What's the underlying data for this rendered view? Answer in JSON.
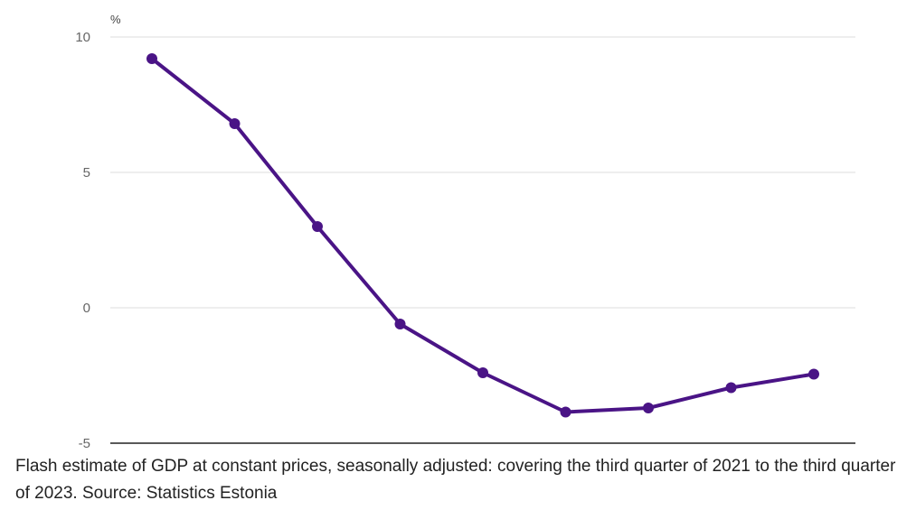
{
  "chart_data": {
    "type": "line",
    "unit_label": "%",
    "ylim": [
      -5,
      10
    ],
    "y_ticks": [
      10,
      5,
      0,
      -5
    ],
    "grid": true,
    "x": [
      1,
      2,
      3,
      4,
      5,
      6,
      7,
      8,
      9
    ],
    "series": [
      {
        "values": [
          9.2,
          6.8,
          3.0,
          -0.6,
          -2.4,
          -3.85,
          -3.7,
          -2.95,
          -2.45
        ],
        "color": "#4a1486"
      }
    ]
  },
  "caption": "Flash estimate of GDP at constant prices, seasonally adjusted: covering the third quarter of 2021 to the third quarter of 2023. Source: Statistics Estonia"
}
